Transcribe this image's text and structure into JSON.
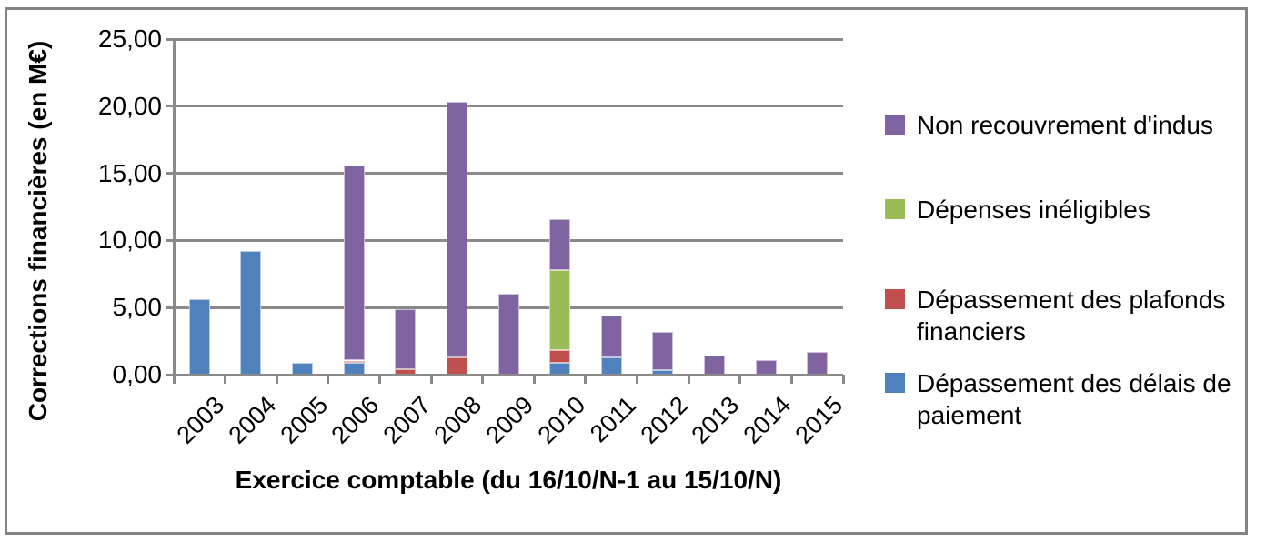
{
  "chart_data": {
    "type": "bar",
    "stacked": true,
    "title": "",
    "xlabel": "Exercice comptable (du 16/10/N-1 au 15/10/N)",
    "ylabel": "Corrections financières (en M€)",
    "ylim": [
      0,
      25
    ],
    "ytick_step": 5,
    "ytick_labels": [
      "0,00",
      "5,00",
      "10,00",
      "15,00",
      "20,00",
      "25,00"
    ],
    "grid": true,
    "legend_position": "right",
    "categories": [
      "2003",
      "2004",
      "2005",
      "2006",
      "2007",
      "2008",
      "2009",
      "2010",
      "2011",
      "2012",
      "2013",
      "2014",
      "2015"
    ],
    "series": [
      {
        "name": "Dépassement des délais de paiement",
        "color": "#4F81BD",
        "border_color": "#B8CCE4",
        "values": [
          5.6,
          9.2,
          0.9,
          0.9,
          0,
          0,
          0,
          0.9,
          1.3,
          0.35,
          0,
          0,
          0
        ]
      },
      {
        "name": "Dépassement des plafonds financiers",
        "color": "#C0504D",
        "border_color": "#E5B8B7",
        "values": [
          0,
          0,
          0,
          0.15,
          0.4,
          1.3,
          0,
          0.9,
          0,
          0,
          0,
          0,
          0
        ]
      },
      {
        "name": "Dépenses inéligibles",
        "color": "#9BBB59",
        "border_color": "#D7E4BD",
        "values": [
          0,
          0,
          0,
          0,
          0,
          0,
          0,
          6.0,
          0,
          0,
          0,
          0,
          0
        ]
      },
      {
        "name": "Non recouvrement d'indus",
        "color": "#8064A2",
        "border_color": "#CCC1DA",
        "values": [
          0,
          0,
          0,
          14.5,
          4.5,
          19.0,
          6.0,
          3.8,
          3.1,
          2.85,
          1.4,
          1.1,
          1.7
        ]
      }
    ],
    "totals": [
      5.6,
      9.2,
      0.9,
      15.55,
      4.9,
      20.3,
      6.0,
      11.6,
      4.4,
      3.2,
      1.4,
      1.1,
      1.7
    ],
    "legend_entries": [
      {
        "label": "Non recouvrement d'indus",
        "color": "#8064A2"
      },
      {
        "label": "Dépenses inéligibles",
        "color": "#9BBB59"
      },
      {
        "label": "Dépassement des plafonds financiers",
        "color": "#C0504D"
      },
      {
        "label": "Dépassement des délais de paiement",
        "color": "#4F81BD"
      }
    ],
    "colors": {
      "gridline": "#8A8A8A",
      "axis": "#8A8A8A",
      "frame": "#848484",
      "text": "#000000",
      "background": "#FFFFFF"
    }
  }
}
